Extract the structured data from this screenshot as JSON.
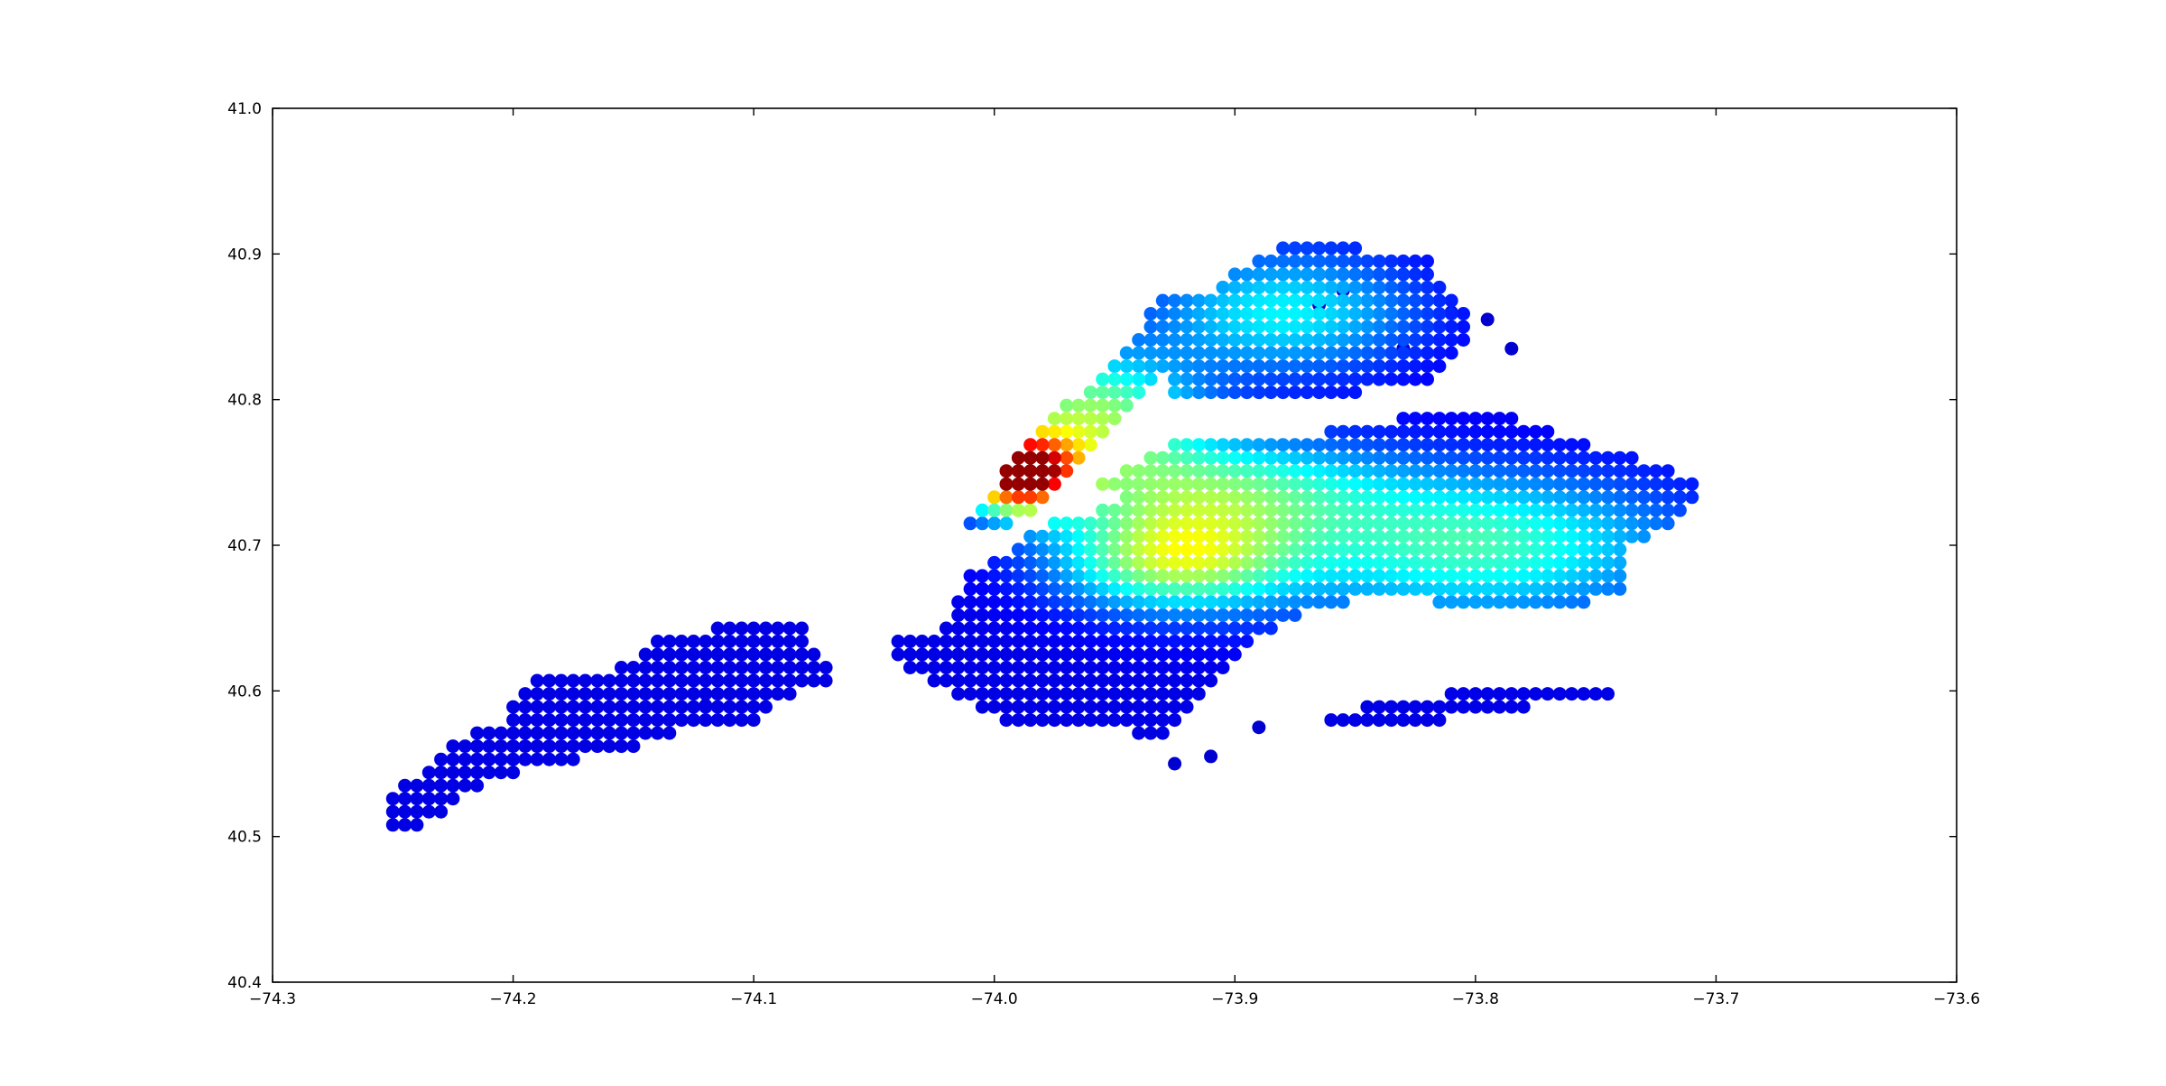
{
  "chart_data": {
    "type": "scatter",
    "title": "",
    "xlabel": "",
    "ylabel": "",
    "xlim": [
      -74.3,
      -73.6
    ],
    "ylim": [
      40.4,
      41.0
    ],
    "x_ticks": [
      -74.3,
      -74.2,
      -74.1,
      -74.0,
      -73.9,
      -73.8,
      -73.7,
      -73.6
    ],
    "x_tick_labels": [
      "−74.3",
      "−74.2",
      "−74.1",
      "−74.0",
      "−73.9",
      "−73.8",
      "−73.7",
      "−73.6"
    ],
    "y_ticks": [
      40.4,
      40.5,
      40.6,
      40.7,
      40.8,
      40.9,
      41.0
    ],
    "y_tick_labels": [
      "40.4",
      "40.5",
      "40.6",
      "40.7",
      "40.8",
      "40.9",
      "41.0"
    ],
    "grid": false,
    "legend": "none",
    "colormap": "jet",
    "marker_color_low": "#00008f",
    "marker_color_high": "#b40000",
    "grid_step": {
      "dx": 0.005,
      "dy": 0.009
    },
    "regions": [
      {
        "name": "",
        "polygon": [
          [
            -74.255,
            40.5
          ],
          [
            -74.235,
            40.51
          ],
          [
            -74.21,
            40.54
          ],
          [
            -74.18,
            40.55
          ],
          [
            -74.15,
            40.56
          ],
          [
            -74.125,
            40.575
          ],
          [
            -74.1,
            40.58
          ],
          [
            -74.08,
            40.6
          ],
          [
            -74.065,
            40.605
          ],
          [
            -74.07,
            40.62
          ],
          [
            -74.08,
            40.645
          ],
          [
            -74.11,
            40.645
          ],
          [
            -74.14,
            40.635
          ],
          [
            -74.16,
            40.615
          ],
          [
            -74.19,
            40.615
          ],
          [
            -74.205,
            40.58
          ],
          [
            -74.225,
            40.565
          ],
          [
            -74.25,
            40.53
          ]
        ]
      },
      {
        "name": "",
        "polygon": [
          [
            -74.045,
            40.635
          ],
          [
            -74.02,
            40.645
          ],
          [
            -74.01,
            40.68
          ],
          [
            -73.99,
            40.7
          ],
          [
            -73.98,
            40.715
          ],
          [
            -73.965,
            40.72
          ],
          [
            -73.95,
            40.73
          ],
          [
            -73.935,
            40.74
          ],
          [
            -73.92,
            40.76
          ],
          [
            -73.9,
            40.77
          ],
          [
            -73.86,
            40.77
          ],
          [
            -73.86,
            40.73
          ],
          [
            -73.85,
            40.7
          ],
          [
            -73.86,
            40.665
          ],
          [
            -73.88,
            40.645
          ],
          [
            -73.9,
            40.625
          ],
          [
            -73.91,
            40.6
          ],
          [
            -73.93,
            40.57
          ],
          [
            -73.99,
            40.575
          ],
          [
            -74.03,
            40.61
          ],
          [
            -74.045,
            40.62
          ]
        ]
      },
      {
        "name": "",
        "polygon": [
          [
            -74.015,
            40.715
          ],
          [
            -74.0,
            40.74
          ],
          [
            -73.99,
            40.765
          ],
          [
            -73.975,
            40.79
          ],
          [
            -73.96,
            40.81
          ],
          [
            -73.945,
            40.835
          ],
          [
            -73.935,
            40.86
          ],
          [
            -73.93,
            40.872
          ],
          [
            -73.915,
            40.875
          ],
          [
            -73.91,
            40.865
          ],
          [
            -73.925,
            40.835
          ],
          [
            -73.935,
            40.81
          ],
          [
            -73.945,
            40.79
          ],
          [
            -73.96,
            40.765
          ],
          [
            -73.975,
            40.735
          ],
          [
            -73.995,
            40.71
          ]
        ]
      },
      {
        "name": "",
        "polygon": [
          [
            -73.93,
            40.8
          ],
          [
            -73.925,
            40.84
          ],
          [
            -73.91,
            40.875
          ],
          [
            -73.9,
            40.89
          ],
          [
            -73.88,
            40.905
          ],
          [
            -73.85,
            40.905
          ],
          [
            -73.82,
            40.895
          ],
          [
            -73.81,
            40.875
          ],
          [
            -73.8,
            40.845
          ],
          [
            -73.815,
            40.815
          ],
          [
            -73.85,
            40.805
          ],
          [
            -73.9,
            40.8
          ]
        ]
      },
      {
        "name": "",
        "polygon": [
          [
            -73.96,
            40.74
          ],
          [
            -73.94,
            40.76
          ],
          [
            -73.92,
            40.775
          ],
          [
            -73.87,
            40.775
          ],
          [
            -73.84,
            40.785
          ],
          [
            -73.82,
            40.79
          ],
          [
            -73.79,
            40.79
          ],
          [
            -73.77,
            40.78
          ],
          [
            -73.745,
            40.765
          ],
          [
            -73.72,
            40.755
          ],
          [
            -73.705,
            40.74
          ],
          [
            -73.715,
            40.72
          ],
          [
            -73.735,
            40.7
          ],
          [
            -73.74,
            40.67
          ],
          [
            -73.76,
            40.655
          ],
          [
            -73.8,
            40.655
          ],
          [
            -73.83,
            40.665
          ],
          [
            -73.86,
            40.66
          ],
          [
            -73.88,
            40.67
          ],
          [
            -73.9,
            40.7
          ],
          [
            -73.93,
            40.72
          ]
        ]
      },
      {
        "name": "",
        "polygon": [
          [
            -73.83,
            40.575
          ],
          [
            -73.8,
            40.585
          ],
          [
            -73.77,
            40.59
          ],
          [
            -73.745,
            40.59
          ],
          [
            -73.745,
            40.605
          ],
          [
            -73.77,
            40.605
          ],
          [
            -73.8,
            40.6
          ],
          [
            -73.83,
            40.595
          ],
          [
            -73.86,
            40.585
          ],
          [
            -73.865,
            40.575
          ]
        ]
      }
    ],
    "intensity_hotspots": [
      {
        "x": -73.99,
        "y": 40.75,
        "peak": 1.0,
        "spread_x": 0.016,
        "spread_y": 0.018
      },
      {
        "x": -73.96,
        "y": 40.79,
        "peak": 0.45,
        "spread_x": 0.03,
        "spread_y": 0.03
      },
      {
        "x": -73.925,
        "y": 40.69,
        "peak": 0.48,
        "spread_x": 0.035,
        "spread_y": 0.025
      },
      {
        "x": -73.91,
        "y": 40.74,
        "peak": 0.35,
        "spread_x": 0.05,
        "spread_y": 0.025
      },
      {
        "x": -73.8,
        "y": 40.7,
        "peak": 0.38,
        "spread_x": 0.06,
        "spread_y": 0.035
      },
      {
        "x": -73.88,
        "y": 40.86,
        "peak": 0.3,
        "spread_x": 0.04,
        "spread_y": 0.03
      }
    ],
    "outlier_points": [
      [
        -73.865,
        40.865
      ],
      [
        -73.855,
        40.875
      ],
      [
        -73.83,
        40.835
      ],
      [
        -73.81,
        40.86
      ],
      [
        -73.795,
        40.855
      ],
      [
        -73.785,
        40.835
      ],
      [
        -73.89,
        40.575
      ],
      [
        -73.91,
        40.555
      ],
      [
        -73.925,
        40.55
      ],
      [
        -74.12,
        40.59
      ]
    ]
  }
}
